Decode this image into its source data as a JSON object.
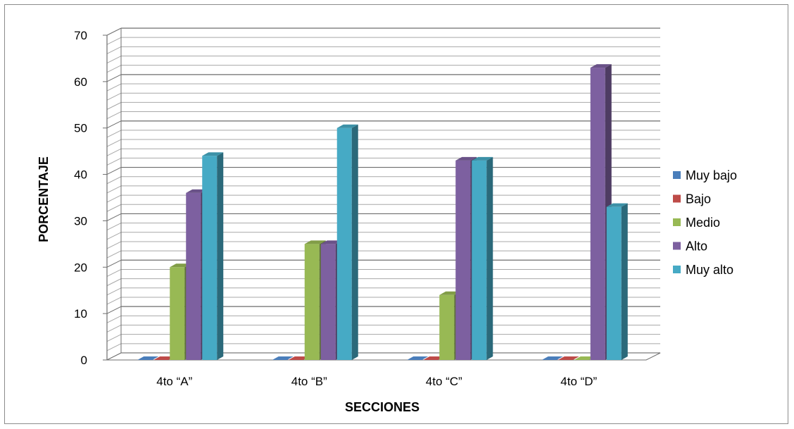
{
  "chart_data": {
    "type": "bar",
    "title": "",
    "xlabel": "SECCIONES",
    "ylabel": "PORCENTAJE",
    "ylim": [
      0,
      70
    ],
    "ytick_step": 10,
    "minor_grid_step": 2,
    "grid": true,
    "legend_position": "right",
    "categories": [
      "4to “A”",
      "4to “B”",
      "4to “C”",
      "4to “D”"
    ],
    "series": [
      {
        "name": "Muy bajo",
        "color": "#4a7ebb",
        "values": [
          0,
          0,
          0,
          0
        ]
      },
      {
        "name": "Bajo",
        "color": "#be4b48",
        "values": [
          0,
          0,
          0,
          0
        ]
      },
      {
        "name": "Medio",
        "color": "#98b954",
        "values": [
          20,
          25,
          14,
          0
        ]
      },
      {
        "name": "Alto",
        "color": "#7d60a0",
        "values": [
          36,
          25,
          43,
          63
        ]
      },
      {
        "name": "Muy alto",
        "color": "#46aac5",
        "values": [
          44,
          50,
          43,
          33
        ]
      }
    ]
  }
}
